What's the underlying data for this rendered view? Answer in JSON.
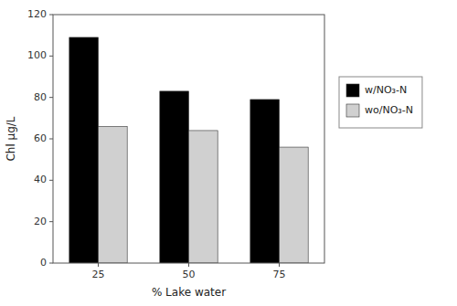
{
  "chart_data": {
    "type": "bar",
    "categories": [
      "25",
      "50",
      "75"
    ],
    "series": [
      {
        "name": "w/NO₃-N",
        "color": "#000000",
        "values": [
          109,
          83,
          79
        ]
      },
      {
        "name": "wo/NO₃-N",
        "color": "#d0d0d0",
        "values": [
          66,
          64,
          56
        ]
      }
    ],
    "xlabel": "% Lake water",
    "ylabel": "Chl μg/L",
    "ylim": [
      0,
      120
    ],
    "yticks": [
      0,
      20,
      40,
      60,
      80,
      100,
      120
    ],
    "legend": "right"
  }
}
